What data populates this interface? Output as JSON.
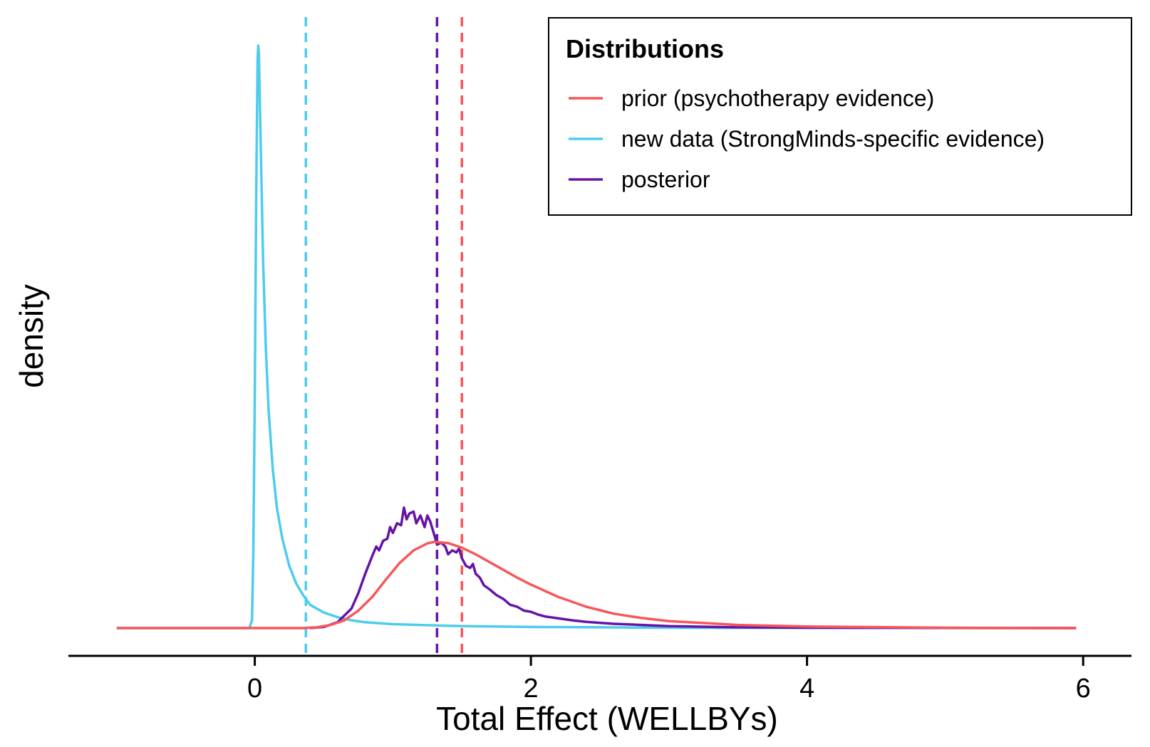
{
  "chart_data": {
    "type": "line",
    "title": "",
    "xlabel": "Total Effect (WELLBYs)",
    "ylabel": "density",
    "xlim": [
      -1.35,
      6.35
    ],
    "xticks": [
      0,
      2,
      4,
      6
    ],
    "y_ticks_shown": false,
    "grid": false,
    "legend": {
      "title": "Distributions",
      "placement": "top-right"
    },
    "series": [
      {
        "name": "prior (psychotherapy evidence)",
        "color": "#F8575A",
        "mean_line": 1.5,
        "points": [
          [
            -1.0,
            0
          ],
          [
            0.35,
            0
          ],
          [
            0.45,
            0.002
          ],
          [
            0.55,
            0.008
          ],
          [
            0.65,
            0.02
          ],
          [
            0.75,
            0.045
          ],
          [
            0.85,
            0.08
          ],
          [
            0.95,
            0.125
          ],
          [
            1.05,
            0.168
          ],
          [
            1.15,
            0.2
          ],
          [
            1.25,
            0.218
          ],
          [
            1.3,
            0.222
          ],
          [
            1.4,
            0.219
          ],
          [
            1.5,
            0.207
          ],
          [
            1.6,
            0.19
          ],
          [
            1.7,
            0.17
          ],
          [
            1.8,
            0.15
          ],
          [
            1.9,
            0.13
          ],
          [
            2.0,
            0.112
          ],
          [
            2.2,
            0.08
          ],
          [
            2.4,
            0.055
          ],
          [
            2.6,
            0.037
          ],
          [
            2.8,
            0.026
          ],
          [
            3.0,
            0.018
          ],
          [
            3.5,
            0.008
          ],
          [
            4.0,
            0.004
          ],
          [
            5.0,
            0.001
          ],
          [
            5.95,
            0
          ]
        ]
      },
      {
        "name": "new data (StrongMinds-specific evidence)",
        "color": "#4DCCEE",
        "mean_line": 0.37,
        "points": [
          [
            -1.0,
            0
          ],
          [
            -0.04,
            0
          ],
          [
            -0.02,
            0.02
          ],
          [
            -0.01,
            0.2
          ],
          [
            0.0,
            0.6
          ],
          [
            0.01,
            1.1
          ],
          [
            0.02,
            1.46
          ],
          [
            0.025,
            1.5
          ],
          [
            0.03,
            1.48
          ],
          [
            0.04,
            1.3
          ],
          [
            0.06,
            0.95
          ],
          [
            0.08,
            0.72
          ],
          [
            0.1,
            0.56
          ],
          [
            0.13,
            0.41
          ],
          [
            0.16,
            0.31
          ],
          [
            0.2,
            0.23
          ],
          [
            0.25,
            0.16
          ],
          [
            0.3,
            0.115
          ],
          [
            0.35,
            0.085
          ],
          [
            0.4,
            0.06
          ],
          [
            0.5,
            0.04
          ],
          [
            0.6,
            0.028
          ],
          [
            0.7,
            0.02
          ],
          [
            0.8,
            0.015
          ],
          [
            1.0,
            0.01
          ],
          [
            1.2,
            0.008
          ],
          [
            1.5,
            0.005
          ],
          [
            2.0,
            0.003
          ],
          [
            2.5,
            0.002
          ],
          [
            3.0,
            0.001
          ],
          [
            5.95,
            0
          ]
        ]
      },
      {
        "name": "posterior",
        "color": "#6514A6",
        "mean_line": 1.32,
        "points": [
          [
            0.4,
            0
          ],
          [
            0.5,
            0.003
          ],
          [
            0.6,
            0.015
          ],
          [
            0.7,
            0.05
          ],
          [
            0.75,
            0.09
          ],
          [
            0.8,
            0.14
          ],
          [
            0.85,
            0.185
          ],
          [
            0.88,
            0.21
          ],
          [
            0.9,
            0.2
          ],
          [
            0.93,
            0.225
          ],
          [
            0.96,
            0.23
          ],
          [
            0.98,
            0.26
          ],
          [
            1.0,
            0.245
          ],
          [
            1.03,
            0.27
          ],
          [
            1.06,
            0.265
          ],
          [
            1.08,
            0.31
          ],
          [
            1.1,
            0.28
          ],
          [
            1.12,
            0.295
          ],
          [
            1.15,
            0.3
          ],
          [
            1.17,
            0.27
          ],
          [
            1.2,
            0.29
          ],
          [
            1.23,
            0.26
          ],
          [
            1.25,
            0.29
          ],
          [
            1.27,
            0.275
          ],
          [
            1.3,
            0.24
          ],
          [
            1.32,
            0.215
          ],
          [
            1.35,
            0.22
          ],
          [
            1.38,
            0.21
          ],
          [
            1.4,
            0.19
          ],
          [
            1.43,
            0.2
          ],
          [
            1.46,
            0.195
          ],
          [
            1.48,
            0.205
          ],
          [
            1.5,
            0.18
          ],
          [
            1.53,
            0.16
          ],
          [
            1.56,
            0.155
          ],
          [
            1.58,
            0.165
          ],
          [
            1.6,
            0.14
          ],
          [
            1.63,
            0.13
          ],
          [
            1.66,
            0.11
          ],
          [
            1.7,
            0.1
          ],
          [
            1.75,
            0.085
          ],
          [
            1.8,
            0.075
          ],
          [
            1.85,
            0.06
          ],
          [
            1.9,
            0.055
          ],
          [
            1.95,
            0.045
          ],
          [
            2.0,
            0.042
          ],
          [
            2.05,
            0.035
          ],
          [
            2.1,
            0.03
          ],
          [
            2.2,
            0.025
          ],
          [
            2.3,
            0.02
          ],
          [
            2.4,
            0.016
          ],
          [
            2.6,
            0.011
          ],
          [
            2.8,
            0.008
          ],
          [
            3.0,
            0.005
          ],
          [
            3.5,
            0.002
          ],
          [
            4.0,
            0.001
          ],
          [
            5.95,
            0
          ]
        ]
      }
    ]
  }
}
